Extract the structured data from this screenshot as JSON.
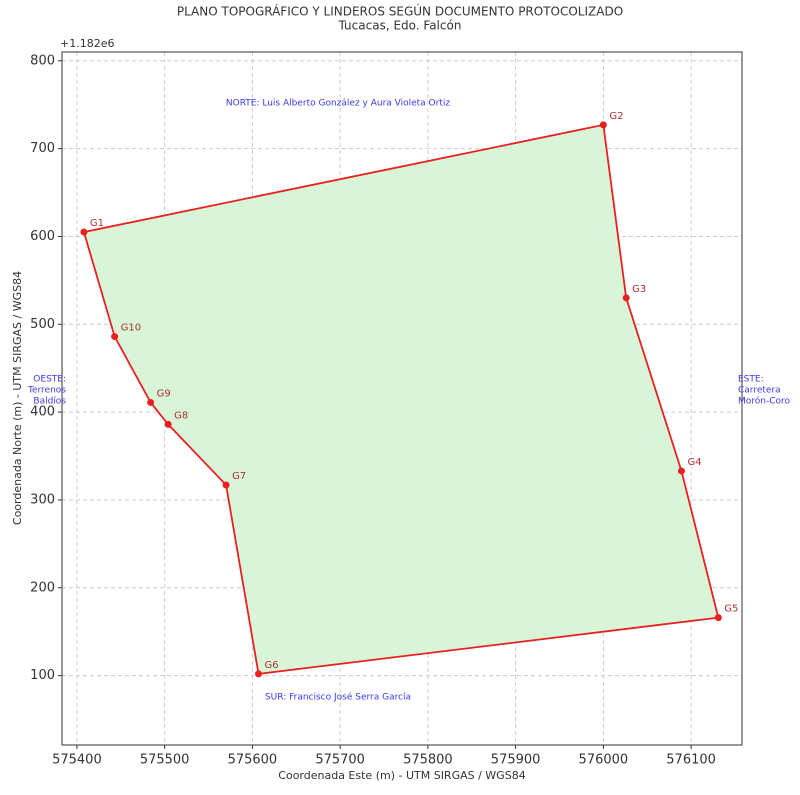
{
  "chart_data": {
    "type": "polygon",
    "title": "PLANO TOPOGRÁFICO Y LINDEROS SEGÚN DOCUMENTO PROTOCOLIZADO",
    "subtitle": "Tucacas, Edo. Falcón",
    "x_label": "Coordenada Este (m) - UTM SIRGAS / WGS84",
    "y_label": "Coordenada Norte (m) - UTM SIRGAS / WGS84",
    "y_offset_label": "+1.182e6",
    "point_names": [
      "G1",
      "G2",
      "G3",
      "G4",
      "G5",
      "G6",
      "G7",
      "G8",
      "G9",
      "G10"
    ],
    "x": [
      575408,
      576000,
      576026,
      576089,
      576131,
      575607,
      575570,
      575504,
      575484,
      575443
    ],
    "series": [
      {
        "color": "#e82020",
        "fill": "#d8f5d8",
        "values": [
          605,
          727,
          530,
          333,
          166,
          102,
          317,
          386,
          411,
          486
        ]
      }
    ],
    "annotations": [
      {
        "lines": [
          "NORTE: Luis Alberto González y Aura Violeta Ortiz"
        ]
      },
      {
        "lines": [
          "SUR: Francisco José Serra García"
        ]
      },
      {
        "lines": [
          "OESTE:",
          "Terrenos",
          "Baldíos"
        ]
      },
      {
        "lines": [
          "ESTE:",
          "Carretera",
          "Morón-Coro"
        ]
      }
    ],
    "annotation_color": "#3a3aee",
    "xlim": [
      575383,
      576158
    ],
    "ylim": [
      21,
      810
    ],
    "xticks": [
      575400,
      575500,
      575600,
      575700,
      575800,
      575900,
      576000,
      576100
    ],
    "yticks": [
      100,
      200,
      300,
      400,
      500,
      600,
      700,
      800
    ],
    "grid": true
  }
}
